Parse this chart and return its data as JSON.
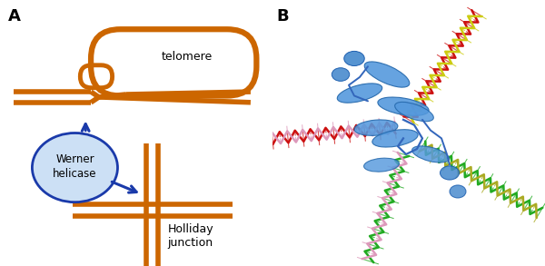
{
  "fig_width": 6.0,
  "fig_height": 2.93,
  "dpi": 100,
  "panel_A_label": "A",
  "panel_B_label": "B",
  "orange_color": "#CC6600",
  "blue_dark": "#1a3aaa",
  "blue_light": "#cce0f5",
  "blue_ellipse_border": "#1a3aaa",
  "text_telomere": "telomere",
  "text_helicase": "Werner\nhelicase",
  "text_holliday": "Holliday\njunction",
  "lw_thick": 4.0
}
